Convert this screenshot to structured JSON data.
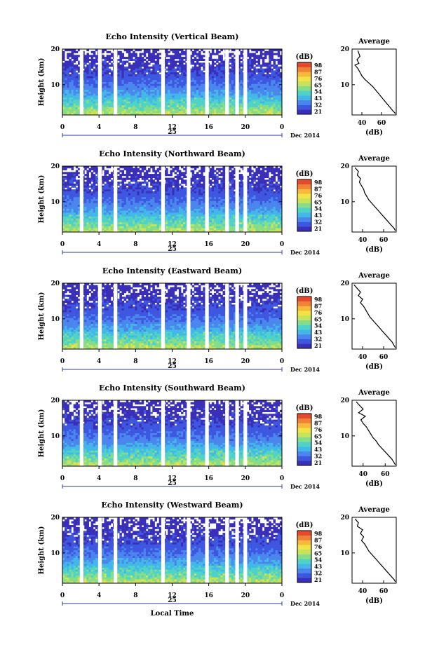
{
  "colors": {
    "colormap": [
      "#3a2fb8",
      "#3e57e0",
      "#4a86ee",
      "#43b8e8",
      "#4fd2c8",
      "#85dd8a",
      "#c7e35c",
      "#f1e246",
      "#f8b83c",
      "#f08236",
      "#e64a2c"
    ],
    "gap": "#ffffff",
    "axis": "#000000",
    "date_line": "#2c3a9c"
  },
  "xaxis_label": "Local Time",
  "chart_data": [
    {
      "type": "heatmap",
      "title": "Echo Intensity (Vertical Beam)",
      "ylabel": "Height (km)",
      "x_ticks": [
        "0",
        "4",
        "8",
        "12",
        "16",
        "20",
        "0"
      ],
      "xlim": [
        0,
        24
      ],
      "ylim": [
        1.5,
        20
      ],
      "y_ticks": [
        "20",
        "10"
      ],
      "date_day": "25",
      "date_month_year": "Dec 2014",
      "colorbar": {
        "unit": "(dB)",
        "ticks": [
          "98",
          "87",
          "76",
          "65",
          "54",
          "43",
          "32",
          "21"
        ]
      },
      "gaps_hours": [
        [
          1.9,
          2.3
        ],
        [
          3.9,
          4.3
        ],
        [
          5.6,
          6.0
        ],
        [
          10.8,
          11.2
        ],
        [
          13.6,
          14.0
        ],
        [
          15.6,
          16.0
        ],
        [
          17.8,
          18.2
        ],
        [
          18.9,
          19.3
        ],
        [
          19.8,
          20.2
        ]
      ],
      "profile": {
        "title": "Average",
        "xlabel": "(dB)",
        "x_ticks": [
          "40",
          "60"
        ],
        "y_ticks": [
          "20",
          "10"
        ],
        "xlim": [
          30,
          75
        ],
        "ylim": [
          1.5,
          20
        ],
        "height_km": [
          19.5,
          18,
          17,
          16,
          15.5,
          14.5,
          13.5,
          12.5,
          11.5,
          10.5,
          9.5,
          8.5,
          7.5,
          6.5,
          5.5,
          4.5,
          3.5,
          2.5,
          2.0
        ],
        "avg_db": [
          36,
          38,
          35,
          37,
          33,
          36,
          38,
          40,
          43,
          47,
          51,
          54,
          57,
          60,
          63,
          66,
          69,
          72,
          74
        ]
      }
    },
    {
      "type": "heatmap",
      "title": "Echo Intensity (Northward Beam)",
      "ylabel": "Height (km)",
      "x_ticks": [
        "0",
        "4",
        "8",
        "12",
        "16",
        "20",
        "0"
      ],
      "xlim": [
        0,
        24
      ],
      "ylim": [
        1.5,
        20
      ],
      "y_ticks": [
        "20",
        "10"
      ],
      "date_day": "25",
      "date_month_year": "Dec 2014",
      "colorbar": {
        "unit": "(dB)",
        "ticks": [
          "98",
          "87",
          "76",
          "65",
          "54",
          "43",
          "32",
          "21"
        ]
      },
      "gaps_hours": [
        [
          1.9,
          2.3
        ],
        [
          3.9,
          4.3
        ],
        [
          5.6,
          6.0
        ],
        [
          10.8,
          11.2
        ],
        [
          13.6,
          14.0
        ],
        [
          15.6,
          16.0
        ],
        [
          17.8,
          18.2
        ],
        [
          18.9,
          19.3
        ],
        [
          19.8,
          20.2
        ]
      ],
      "profile": {
        "title": "Average",
        "xlabel": "(dB)",
        "x_ticks": [
          "40",
          "60"
        ],
        "y_ticks": [
          "20",
          "10"
        ],
        "xlim": [
          30,
          72
        ],
        "ylim": [
          1.5,
          20
        ],
        "height_km": [
          19.5,
          18.5,
          17.5,
          16.5,
          15.5,
          14.5,
          13.5,
          12.5,
          11.5,
          10.5,
          9.5,
          8.5,
          7.5,
          6.5,
          5.5,
          4.5,
          3.5,
          2.5,
          2.0
        ],
        "avg_db": [
          33,
          36,
          35,
          38,
          37,
          39,
          41,
          42,
          44,
          46,
          49,
          52,
          55,
          58,
          61,
          64,
          67,
          70,
          71
        ]
      }
    },
    {
      "type": "heatmap",
      "title": "Echo Intensity (Eastward Beam)",
      "ylabel": "Height (km)",
      "x_ticks": [
        "0",
        "4",
        "8",
        "12",
        "16",
        "20",
        "0"
      ],
      "xlim": [
        0,
        24
      ],
      "ylim": [
        1.5,
        20
      ],
      "y_ticks": [
        "20",
        "10"
      ],
      "date_day": "25",
      "date_month_year": "Dec 2014",
      "colorbar": {
        "unit": "(dB)",
        "ticks": [
          "98",
          "87",
          "76",
          "65",
          "54",
          "43",
          "32",
          "21"
        ]
      },
      "gaps_hours": [
        [
          1.9,
          2.3
        ],
        [
          3.9,
          4.3
        ],
        [
          5.6,
          6.0
        ],
        [
          10.8,
          11.2
        ],
        [
          13.6,
          14.0
        ],
        [
          15.6,
          16.0
        ],
        [
          17.8,
          18.2
        ],
        [
          18.9,
          19.3
        ],
        [
          19.8,
          20.2
        ]
      ],
      "profile": {
        "title": "Average",
        "xlabel": "(dB)",
        "x_ticks": [
          "40",
          "60"
        ],
        "y_ticks": [
          "20",
          "10"
        ],
        "xlim": [
          30,
          72
        ],
        "ylim": [
          1.5,
          20
        ],
        "height_km": [
          19.5,
          18.5,
          17.5,
          16.5,
          15.5,
          14.5,
          13.5,
          12.5,
          11.5,
          10.5,
          9.5,
          8.5,
          7.5,
          6.5,
          5.5,
          4.5,
          3.5,
          2.5,
          2.0
        ],
        "avg_db": [
          32,
          35,
          38,
          36,
          40,
          38,
          41,
          43,
          45,
          47,
          50,
          53,
          56,
          59,
          62,
          65,
          68,
          70,
          71
        ]
      }
    },
    {
      "type": "heatmap",
      "title": "Echo Intensity (Southward Beam)",
      "ylabel": "Height (km)",
      "x_ticks": [
        "0",
        "4",
        "8",
        "12",
        "16",
        "20",
        "0"
      ],
      "xlim": [
        0,
        24
      ],
      "ylim": [
        1.5,
        20
      ],
      "y_ticks": [
        "20",
        "10"
      ],
      "date_day": "25",
      "date_month_year": "Dec 2014",
      "colorbar": {
        "unit": "(dB)",
        "ticks": [
          "98",
          "87",
          "76",
          "65",
          "54",
          "43",
          "32",
          "21"
        ]
      },
      "gaps_hours": [
        [
          1.9,
          2.3
        ],
        [
          3.9,
          4.3
        ],
        [
          5.6,
          6.0
        ],
        [
          10.8,
          11.2
        ],
        [
          13.6,
          14.0
        ],
        [
          15.6,
          16.0
        ],
        [
          17.8,
          18.2
        ],
        [
          18.9,
          19.3
        ],
        [
          19.8,
          20.2
        ]
      ],
      "profile": {
        "title": "Average",
        "xlabel": "(dB)",
        "x_ticks": [
          "40",
          "60"
        ],
        "y_ticks": [
          "20",
          "10"
        ],
        "xlim": [
          30,
          70
        ],
        "ylim": [
          1.5,
          20
        ],
        "height_km": [
          19.5,
          18.5,
          17.5,
          16.5,
          15.5,
          14.5,
          13.5,
          12.5,
          11.5,
          10.5,
          9.5,
          8.5,
          7.5,
          6.5,
          5.5,
          4.5,
          3.5,
          2.5,
          2.0
        ],
        "avg_db": [
          34,
          37,
          40,
          36,
          42,
          38,
          40,
          43,
          45,
          47,
          49,
          52,
          54,
          57,
          60,
          63,
          66,
          68,
          69
        ]
      }
    },
    {
      "type": "heatmap",
      "title": "Echo Intensity (Westward Beam)",
      "ylabel": "Height (km)",
      "x_ticks": [
        "0",
        "4",
        "8",
        "12",
        "16",
        "20",
        "0"
      ],
      "xlim": [
        0,
        24
      ],
      "ylim": [
        1.5,
        20
      ],
      "y_ticks": [
        "20",
        "10"
      ],
      "date_day": "25",
      "date_month_year": "Dec 2014",
      "colorbar": {
        "unit": "(dB)",
        "ticks": [
          "98",
          "87",
          "76",
          "65",
          "54",
          "43",
          "32",
          "21"
        ]
      },
      "gaps_hours": [
        [
          1.9,
          2.3
        ],
        [
          3.9,
          4.3
        ],
        [
          5.6,
          6.0
        ],
        [
          10.8,
          11.2
        ],
        [
          13.6,
          14.0
        ],
        [
          15.6,
          16.0
        ],
        [
          17.8,
          18.2
        ],
        [
          18.9,
          19.3
        ],
        [
          19.8,
          20.2
        ]
      ],
      "profile": {
        "title": "Average",
        "xlabel": "(dB)",
        "x_ticks": [
          "40",
          "60"
        ],
        "y_ticks": [
          "20",
          "10"
        ],
        "xlim": [
          30,
          72
        ],
        "ylim": [
          1.5,
          20
        ],
        "height_km": [
          19.5,
          18.5,
          17.5,
          16.5,
          15.5,
          14.5,
          13.5,
          12.5,
          11.5,
          10.5,
          9.5,
          8.5,
          7.5,
          6.5,
          5.5,
          4.5,
          3.5,
          2.5,
          2.0
        ],
        "avg_db": [
          33,
          36,
          35,
          40,
          38,
          41,
          39,
          42,
          44,
          46,
          49,
          52,
          55,
          58,
          61,
          64,
          67,
          70,
          71
        ]
      }
    }
  ]
}
